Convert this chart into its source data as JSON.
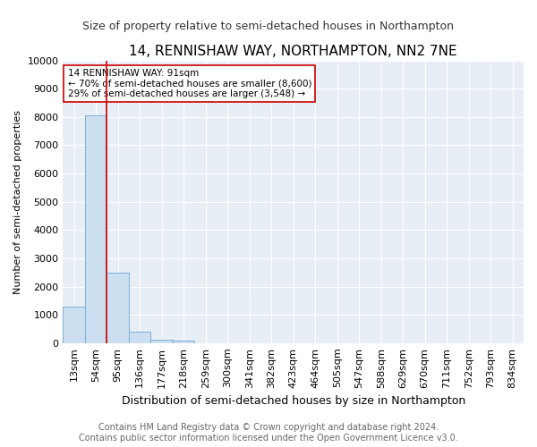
{
  "title": "14, RENNISHAW WAY, NORTHAMPTON, NN2 7NE",
  "subtitle": "Size of property relative to semi-detached houses in Northampton",
  "xlabel": "Distribution of semi-detached houses by size in Northampton",
  "ylabel": "Number of semi-detached properties",
  "footer_line1": "Contains HM Land Registry data © Crown copyright and database right 2024.",
  "footer_line2": "Contains public sector information licensed under the Open Government Licence v3.0.",
  "categories": [
    "13sqm",
    "54sqm",
    "95sqm",
    "136sqm",
    "177sqm",
    "218sqm",
    "259sqm",
    "300sqm",
    "341sqm",
    "382sqm",
    "423sqm",
    "464sqm",
    "505sqm",
    "547sqm",
    "588sqm",
    "629sqm",
    "670sqm",
    "711sqm",
    "752sqm",
    "793sqm",
    "834sqm"
  ],
  "values": [
    1300,
    8050,
    2500,
    390,
    130,
    80,
    0,
    0,
    0,
    0,
    0,
    0,
    0,
    0,
    0,
    0,
    0,
    0,
    0,
    0,
    0
  ],
  "bar_color": "#ccdff0",
  "bar_edge_color": "#7aafd4",
  "vline_color": "#cc0000",
  "vline_x": 1.5,
  "annotation_text": "14 RENNISHAW WAY: 91sqm\n← 70% of semi-detached houses are smaller (8,600)\n29% of semi-detached houses are larger (3,548) →",
  "annotation_box_facecolor": "#ffffff",
  "annotation_box_edgecolor": "#cc0000",
  "ylim": [
    0,
    10000
  ],
  "yticks": [
    0,
    1000,
    2000,
    3000,
    4000,
    5000,
    6000,
    7000,
    8000,
    9000,
    10000
  ],
  "title_fontsize": 11,
  "subtitle_fontsize": 9,
  "xlabel_fontsize": 9,
  "ylabel_fontsize": 8,
  "tick_fontsize": 8,
  "annotation_fontsize": 7.5,
  "footer_fontsize": 7,
  "fig_bg_color": "#ffffff",
  "plot_bg_color": "#e8eef6",
  "grid_color": "#ffffff"
}
